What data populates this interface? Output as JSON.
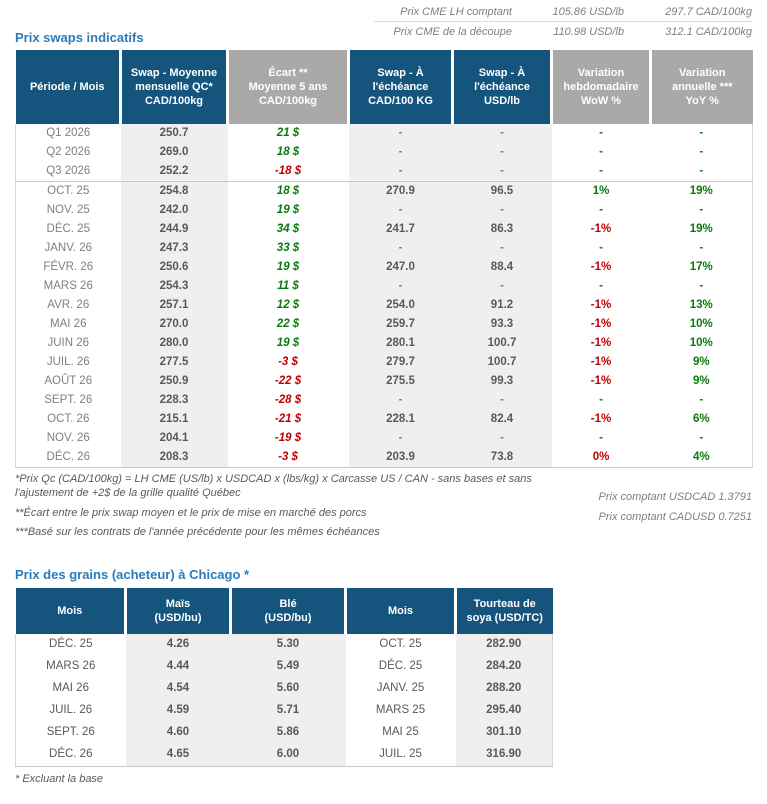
{
  "colors": {
    "header_blue": "#15557d",
    "header_gray": "#a9a9a9",
    "title_blue": "#2b7bb9",
    "positive_green": "#0a7a0a",
    "negative_red": "#c00000"
  },
  "cme": {
    "lines": [
      {
        "label": "Prix CME LH comptant",
        "usd": "105.86 USD/lb",
        "cad": "297.7 CAD/100kg"
      },
      {
        "label": "Prix CME de la découpe",
        "usd": "110.98 USD/lb",
        "cad": "312.1 CAD/100kg"
      }
    ]
  },
  "swaps_table": {
    "title": "Prix swaps indicatifs",
    "headers": [
      {
        "label": "Période / Mois"
      },
      {
        "label": "Swap - Moyenne\nmensuelle QC*\nCAD/100kg"
      },
      {
        "label": "Écart **\nMoyenne 5 ans\nCAD/100kg"
      },
      {
        "label": "Swap - À\nl'échéance\nCAD/100 KG"
      },
      {
        "label": "Swap - À\nl'échéance\nUSD/lb"
      },
      {
        "label": "Variation\nhebdomadaire\nWoW %"
      },
      {
        "label": "Variation\nannuelle ***\nYoY %"
      }
    ],
    "rows": [
      {
        "period": "Q1 2026",
        "swap": "250.7",
        "ecart": "21 $",
        "ecart_cls": "pos",
        "cad": "-",
        "usd": "-",
        "wow": "-",
        "wow_cls": "pos",
        "yoy": "-",
        "yoy_cls": "pos"
      },
      {
        "period": "Q2 2026",
        "swap": "269.0",
        "ecart": "18 $",
        "ecart_cls": "pos",
        "cad": "-",
        "usd": "-",
        "wow": "-",
        "wow_cls": "pos",
        "yoy": "-",
        "yoy_cls": "pos"
      },
      {
        "period": "Q3 2026",
        "swap": "252.2",
        "ecart": "-18 $",
        "ecart_cls": "neg",
        "cad": "-",
        "usd": "-",
        "wow": "-",
        "wow_cls": "pos",
        "yoy": "-",
        "yoy_cls": "pos",
        "group_end": true
      },
      {
        "period": "OCT. 25",
        "swap": "254.8",
        "ecart": "18 $",
        "ecart_cls": "pos",
        "cad": "270.9",
        "usd": "96.5",
        "wow": "1%",
        "wow_cls": "pos",
        "yoy": "19%",
        "yoy_cls": "pos"
      },
      {
        "period": "NOV. 25",
        "swap": "242.0",
        "ecart": "19 $",
        "ecart_cls": "pos",
        "cad": "-",
        "usd": "-",
        "wow": "-",
        "wow_cls": "pos",
        "yoy": "-",
        "yoy_cls": "pos"
      },
      {
        "period": "DÉC. 25",
        "swap": "244.9",
        "ecart": "34 $",
        "ecart_cls": "pos",
        "cad": "241.7",
        "usd": "86.3",
        "wow": "-1%",
        "wow_cls": "neg",
        "yoy": "19%",
        "yoy_cls": "pos"
      },
      {
        "period": "JANV. 26",
        "swap": "247.3",
        "ecart": "33 $",
        "ecart_cls": "pos",
        "cad": "-",
        "usd": "-",
        "wow": "-",
        "wow_cls": "pos",
        "yoy": "-",
        "yoy_cls": "pos"
      },
      {
        "period": "FÉVR. 26",
        "swap": "250.6",
        "ecart": "19 $",
        "ecart_cls": "pos",
        "cad": "247.0",
        "usd": "88.4",
        "wow": "-1%",
        "wow_cls": "neg",
        "yoy": "17%",
        "yoy_cls": "pos"
      },
      {
        "period": "MARS 26",
        "swap": "254.3",
        "ecart": "11 $",
        "ecart_cls": "pos",
        "cad": "-",
        "usd": "-",
        "wow": "-",
        "wow_cls": "pos",
        "yoy": "-",
        "yoy_cls": "pos"
      },
      {
        "period": "AVR. 26",
        "swap": "257.1",
        "ecart": "12 $",
        "ecart_cls": "pos",
        "cad": "254.0",
        "usd": "91.2",
        "wow": "-1%",
        "wow_cls": "neg",
        "yoy": "13%",
        "yoy_cls": "pos"
      },
      {
        "period": "MAI 26",
        "swap": "270.0",
        "ecart": "22 $",
        "ecart_cls": "pos",
        "cad": "259.7",
        "usd": "93.3",
        "wow": "-1%",
        "wow_cls": "neg",
        "yoy": "10%",
        "yoy_cls": "pos"
      },
      {
        "period": "JUIN 26",
        "swap": "280.0",
        "ecart": "19 $",
        "ecart_cls": "pos",
        "cad": "280.1",
        "usd": "100.7",
        "wow": "-1%",
        "wow_cls": "neg",
        "yoy": "10%",
        "yoy_cls": "pos"
      },
      {
        "period": "JUIL. 26",
        "swap": "277.5",
        "ecart": "-3 $",
        "ecart_cls": "neg",
        "cad": "279.7",
        "usd": "100.7",
        "wow": "-1%",
        "wow_cls": "neg",
        "yoy": "9%",
        "yoy_cls": "pos"
      },
      {
        "period": "AOÛT 26",
        "swap": "250.9",
        "ecart": "-22 $",
        "ecart_cls": "neg",
        "cad": "275.5",
        "usd": "99.3",
        "wow": "-1%",
        "wow_cls": "neg",
        "yoy": "9%",
        "yoy_cls": "pos"
      },
      {
        "period": "SEPT. 26",
        "swap": "228.3",
        "ecart": "-28 $",
        "ecart_cls": "neg",
        "cad": "-",
        "usd": "-",
        "wow": "-",
        "wow_cls": "pos",
        "yoy": "-",
        "yoy_cls": "pos"
      },
      {
        "period": "OCT. 26",
        "swap": "215.1",
        "ecart": "-21 $",
        "ecart_cls": "neg",
        "cad": "228.1",
        "usd": "82.4",
        "wow": "-1%",
        "wow_cls": "neg",
        "yoy": "6%",
        "yoy_cls": "pos"
      },
      {
        "period": "NOV. 26",
        "swap": "204.1",
        "ecart": "-19 $",
        "ecart_cls": "neg",
        "cad": "-",
        "usd": "-",
        "wow": "-",
        "wow_cls": "pos",
        "yoy": "-",
        "yoy_cls": "pos"
      },
      {
        "period": "DÉC. 26",
        "swap": "208.3",
        "ecart": "-3 $",
        "ecart_cls": "neg",
        "cad": "203.9",
        "usd": "73.8",
        "wow": "0%",
        "wow_cls": "neg",
        "yoy": "4%",
        "yoy_cls": "pos"
      }
    ]
  },
  "footnotes": [
    "*Prix Qc (CAD/100kg) = LH CME (US/lb) x USDCAD x (lbs/kg) x Carcasse US / CAN - sans bases et sans l'ajustement de +2$ de la grille qualité Québec",
    "**Écart entre le prix swap moyen et le prix de mise en marché des porcs",
    "***Basé sur les contrats de l'année précédente pour les mêmes échéances"
  ],
  "fx": {
    "lines": [
      "Prix comptant USDCAD 1.3791",
      "Prix comptant CADUSD 0.7251"
    ]
  },
  "grains_table": {
    "title": "Prix des grains (acheteur) à Chicago *",
    "headers": [
      {
        "label": "Mois"
      },
      {
        "label": "Maïs\n(USD/bu)"
      },
      {
        "label": "Blé\n(USD/bu)"
      },
      {
        "label": "Mois"
      },
      {
        "label": "Tourteau de\nsoya (USD/TC)"
      }
    ],
    "rows": [
      {
        "mois1": "DÉC. 25",
        "mais": "4.26",
        "ble": "5.30",
        "mois2": "OCT. 25",
        "soya": "282.90"
      },
      {
        "mois1": "MARS 26",
        "mais": "4.44",
        "ble": "5.49",
        "mois2": "DÉC. 25",
        "soya": "284.20"
      },
      {
        "mois1": "MAI 26",
        "mais": "4.54",
        "ble": "5.60",
        "mois2": "JANV. 25",
        "soya": "288.20"
      },
      {
        "mois1": "JUIL. 26",
        "mais": "4.59",
        "ble": "5.71",
        "mois2": "MARS 25",
        "soya": "295.40"
      },
      {
        "mois1": "SEPT. 26",
        "mais": "4.60",
        "ble": "5.86",
        "mois2": "MAI 25",
        "soya": "301.10"
      },
      {
        "mois1": "DÉC. 26",
        "mais": "4.65",
        "ble": "6.00",
        "mois2": "JUIL. 25",
        "soya": "316.90"
      }
    ],
    "footnote": "* Excluant la base"
  }
}
